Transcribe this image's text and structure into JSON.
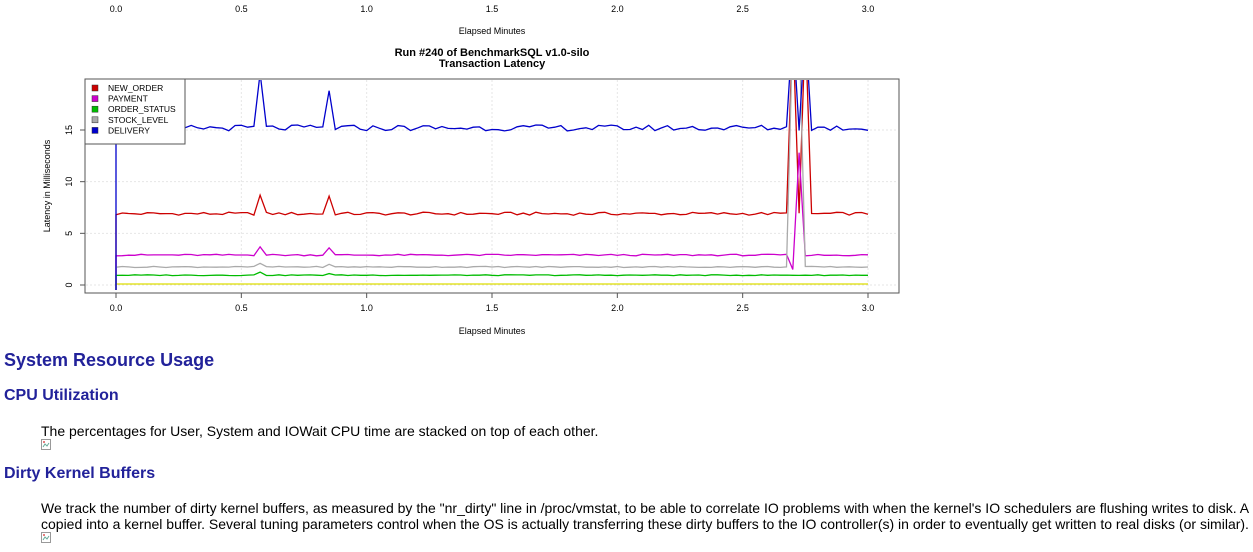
{
  "top_axis": {
    "ticks": [
      "0.0",
      "0.5",
      "1.0",
      "1.5",
      "2.0",
      "2.5",
      "3.0"
    ],
    "xlabel": "Elapsed Minutes"
  },
  "chart_data": {
    "type": "line",
    "title": "Run #240 of BenchmarkSQL v1.0-silo",
    "subtitle": "Transaction Latency",
    "xlabel": "Elapsed Minutes",
    "ylabel": "Latency in Milliseconds",
    "xlim": [
      0,
      3.0
    ],
    "ylim": [
      0,
      20
    ],
    "x_ticks": [
      "0.0",
      "0.5",
      "1.0",
      "1.5",
      "2.0",
      "2.5",
      "3.0"
    ],
    "y_ticks": [
      "0",
      "5",
      "10",
      "15"
    ],
    "legend_position": "top-left",
    "grid": true,
    "series": [
      {
        "name": "NEW_ORDER",
        "color": "#cc0000",
        "base": 6.9,
        "spikes": [
          [
            0.58,
            8.7
          ],
          [
            0.85,
            8.6
          ],
          [
            2.71,
            25
          ],
          [
            2.74,
            25
          ]
        ]
      },
      {
        "name": "PAYMENT",
        "color": "#cc00cc",
        "base": 2.9,
        "spikes": [
          [
            0.58,
            3.7
          ],
          [
            0.85,
            3.6
          ],
          [
            2.7,
            1.5
          ],
          [
            2.73,
            12.8
          ]
        ]
      },
      {
        "name": "ORDER_STATUS",
        "color": "#00bb00",
        "base": 0.95,
        "spikes": [
          [
            0.58,
            1.25
          ],
          [
            0.85,
            1.1
          ]
        ]
      },
      {
        "name": "STOCK_LEVEL",
        "color": "#aaaaaa",
        "base": 1.75,
        "spikes": [
          [
            0.58,
            2.1
          ],
          [
            0.85,
            2.0
          ],
          [
            2.7,
            25
          ],
          [
            2.72,
            25
          ]
        ]
      },
      {
        "name": "DELIVERY",
        "color": "#0000cc",
        "base": 15.2,
        "spikes": [
          [
            0.58,
            20.5
          ],
          [
            0.85,
            18.8
          ],
          [
            2.71,
            25
          ],
          [
            2.74,
            25
          ]
        ]
      }
    ],
    "extra_line": {
      "color": "#dddd00",
      "value": 0.1
    }
  },
  "sections": {
    "system_title": "System Resource Usage",
    "cpu_title": "CPU Utilization",
    "cpu_text": "The percentages for User, System and IOWait CPU time are stacked on top of each other.",
    "dirty_title": "Dirty Kernel Buffers",
    "dirty_text_1": "We track the number of dirty kernel buffers, as measured by the \"nr_dirty\" line in /proc/vmstat, to be able to correlate IO problems with when the kernel's IO schedulers are flushing writes to disk. A",
    "dirty_text_2": "copied into a kernel buffer. Several tuning parameters control when the OS is actually transferring these dirty buffers to the IO controller(s) in order to eventually get written to real disks (or similar)."
  },
  "icons": {
    "broken_image": "broken-image-icon"
  }
}
